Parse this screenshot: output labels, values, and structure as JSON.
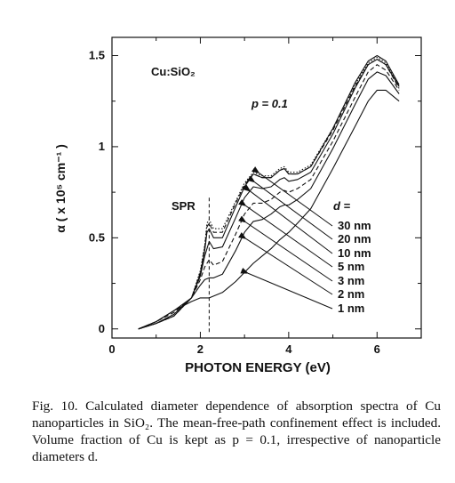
{
  "chart_data": {
    "type": "line",
    "xlabel": "PHOTON ENERGY (eV)",
    "ylabel": "α ( x 10⁵ cm⁻¹ )",
    "xlim": [
      0,
      7
    ],
    "ylim": [
      -0.05,
      1.6
    ],
    "xticks": [
      "0",
      "2",
      "4",
      "6"
    ],
    "yticks": [
      "0",
      "0.5",
      "1",
      "1.5"
    ],
    "annotations": {
      "material": "Cu:SiO₂",
      "fraction": "p = 0.1",
      "spr": "SPR",
      "d_label": "d ="
    },
    "legend": [
      "30 nm",
      "20 nm",
      "10 nm",
      "5 nm",
      "3 nm",
      "2 nm",
      "1 nm"
    ],
    "series": [
      {
        "name": "30 nm",
        "style": "dotted",
        "x": [
          0.6,
          1.0,
          1.4,
          1.8,
          2.0,
          2.1,
          2.15,
          2.2,
          2.3,
          2.5,
          2.8,
          3.0,
          3.2,
          3.4,
          3.6,
          3.8,
          3.9,
          4.0,
          4.2,
          4.5,
          5.0,
          5.5,
          5.8,
          6.0,
          6.2,
          6.5
        ],
        "y": [
          0.0,
          0.03,
          0.07,
          0.17,
          0.32,
          0.46,
          0.58,
          0.6,
          0.55,
          0.55,
          0.7,
          0.8,
          0.86,
          0.84,
          0.84,
          0.88,
          0.89,
          0.86,
          0.86,
          0.9,
          1.1,
          1.34,
          1.46,
          1.49,
          1.46,
          1.33
        ]
      },
      {
        "name": "20 nm",
        "style": "dashed",
        "x": [
          0.6,
          1.0,
          1.4,
          1.8,
          2.0,
          2.1,
          2.15,
          2.2,
          2.3,
          2.5,
          2.8,
          3.0,
          3.2,
          3.4,
          3.6,
          3.8,
          3.9,
          4.0,
          4.2,
          4.5,
          5.0,
          5.5,
          5.8,
          6.0,
          6.2,
          6.5
        ],
        "y": [
          0.0,
          0.03,
          0.07,
          0.17,
          0.31,
          0.45,
          0.56,
          0.58,
          0.53,
          0.53,
          0.69,
          0.79,
          0.85,
          0.83,
          0.83,
          0.87,
          0.88,
          0.85,
          0.85,
          0.89,
          1.09,
          1.33,
          1.45,
          1.48,
          1.45,
          1.32
        ]
      },
      {
        "name": "10 nm",
        "style": "solid",
        "x": [
          0.6,
          1.0,
          1.4,
          1.8,
          2.0,
          2.1,
          2.15,
          2.2,
          2.3,
          2.5,
          2.8,
          3.0,
          3.2,
          3.4,
          3.6,
          3.8,
          3.9,
          4.0,
          4.2,
          4.5,
          5.0,
          5.5,
          5.8,
          6.0,
          6.2,
          6.5
        ],
        "y": [
          0.0,
          0.03,
          0.07,
          0.17,
          0.3,
          0.43,
          0.53,
          0.55,
          0.5,
          0.5,
          0.67,
          0.78,
          0.85,
          0.83,
          0.83,
          0.87,
          0.88,
          0.85,
          0.85,
          0.89,
          1.1,
          1.35,
          1.47,
          1.5,
          1.47,
          1.34
        ]
      },
      {
        "name": "5 nm",
        "style": "solid",
        "x": [
          0.6,
          1.0,
          1.4,
          1.8,
          2.0,
          2.1,
          2.2,
          2.3,
          2.5,
          2.8,
          3.0,
          3.2,
          3.4,
          3.6,
          3.8,
          3.9,
          4.0,
          4.2,
          4.5,
          5.0,
          5.5,
          5.8,
          6.0,
          6.2,
          6.5
        ],
        "y": [
          0.0,
          0.03,
          0.08,
          0.17,
          0.29,
          0.4,
          0.48,
          0.44,
          0.45,
          0.61,
          0.72,
          0.78,
          0.77,
          0.78,
          0.82,
          0.83,
          0.81,
          0.82,
          0.86,
          1.07,
          1.32,
          1.45,
          1.48,
          1.45,
          1.33
        ]
      },
      {
        "name": "3 nm",
        "style": "dashed",
        "x": [
          0.6,
          1.0,
          1.4,
          1.8,
          2.0,
          2.1,
          2.2,
          2.3,
          2.5,
          2.8,
          3.0,
          3.2,
          3.4,
          3.6,
          3.8,
          3.9,
          4.0,
          4.2,
          4.5,
          5.0,
          5.5,
          5.8,
          6.0,
          6.2,
          6.5
        ],
        "y": [
          0.0,
          0.04,
          0.09,
          0.17,
          0.27,
          0.34,
          0.38,
          0.35,
          0.37,
          0.52,
          0.63,
          0.69,
          0.69,
          0.71,
          0.75,
          0.76,
          0.75,
          0.77,
          0.82,
          1.03,
          1.27,
          1.41,
          1.45,
          1.42,
          1.31
        ]
      },
      {
        "name": "2 nm",
        "style": "solid",
        "x": [
          0.6,
          1.0,
          1.4,
          1.8,
          2.0,
          2.1,
          2.2,
          2.3,
          2.5,
          2.8,
          3.0,
          3.2,
          3.4,
          3.6,
          3.8,
          3.9,
          4.0,
          4.2,
          4.5,
          5.0,
          5.5,
          5.8,
          6.0,
          6.2,
          6.5
        ],
        "y": [
          0.0,
          0.04,
          0.1,
          0.17,
          0.24,
          0.27,
          0.28,
          0.28,
          0.3,
          0.43,
          0.53,
          0.59,
          0.6,
          0.63,
          0.67,
          0.68,
          0.68,
          0.71,
          0.77,
          0.99,
          1.23,
          1.37,
          1.41,
          1.39,
          1.29
        ]
      },
      {
        "name": "1 nm",
        "style": "solid",
        "x": [
          0.6,
          1.0,
          1.4,
          1.8,
          2.0,
          2.1,
          2.2,
          2.3,
          2.5,
          2.8,
          3.0,
          3.2,
          3.4,
          3.6,
          3.8,
          4.0,
          4.2,
          4.5,
          5.0,
          5.5,
          5.8,
          6.0,
          6.2,
          6.5
        ],
        "y": [
          0.0,
          0.04,
          0.1,
          0.15,
          0.17,
          0.17,
          0.17,
          0.18,
          0.2,
          0.26,
          0.31,
          0.36,
          0.4,
          0.44,
          0.49,
          0.53,
          0.58,
          0.66,
          0.88,
          1.11,
          1.25,
          1.31,
          1.31,
          1.25
        ]
      }
    ]
  },
  "caption": {
    "text": "Fig. 10. Calculated diameter dependence of absorption spectra of Cu nanoparticles in SiO₂. The mean-free-path confinement effect is included. Volume fraction of Cu is kept as p = 0.1, irrespective of nanoparticle diameters d."
  }
}
